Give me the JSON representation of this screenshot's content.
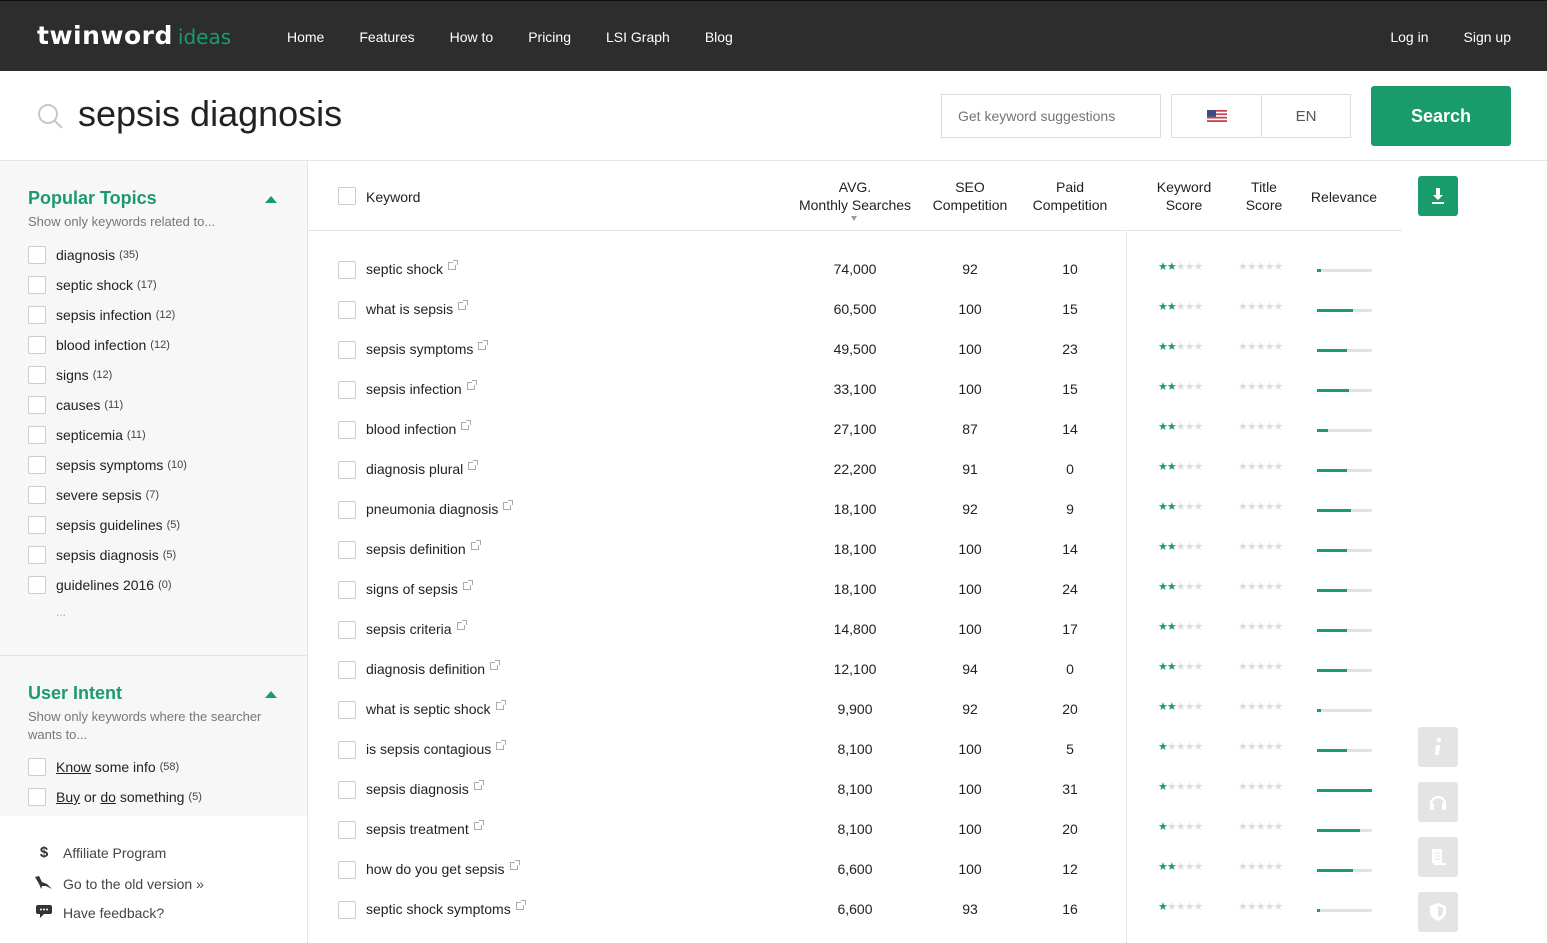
{
  "brand": {
    "logo_text": "twinword",
    "logo_suffix": "ideas"
  },
  "nav": {
    "items": [
      "Home",
      "Features",
      "How to",
      "Pricing",
      "LSI Graph",
      "Blog"
    ],
    "login": "Log in",
    "signup": "Sign up"
  },
  "search": {
    "query": "sepsis diagnosis",
    "suggest_placeholder": "Get keyword suggestions",
    "language": "EN",
    "button": "Search"
  },
  "popular_topics": {
    "title": "Popular Topics",
    "subtitle": "Show only keywords related to...",
    "items": [
      {
        "label": "diagnosis",
        "count": "(35)"
      },
      {
        "label": "septic shock",
        "count": "(17)"
      },
      {
        "label": "sepsis infection",
        "count": "(12)"
      },
      {
        "label": "blood infection",
        "count": "(12)"
      },
      {
        "label": "signs",
        "count": "(12)"
      },
      {
        "label": "causes",
        "count": "(11)"
      },
      {
        "label": "septicemia",
        "count": "(11)"
      },
      {
        "label": "sepsis symptoms",
        "count": "(10)"
      },
      {
        "label": "severe sepsis",
        "count": "(7)"
      },
      {
        "label": "sepsis guidelines",
        "count": "(5)"
      },
      {
        "label": "sepsis diagnosis",
        "count": "(5)"
      },
      {
        "label": "guidelines 2016",
        "count": "(0)"
      }
    ],
    "more": "..."
  },
  "user_intent": {
    "title": "User Intent",
    "subtitle": "Show only keywords where the searcher wants to...",
    "know_word": "Know",
    "know_rest": "some info",
    "know_count": "(58)",
    "buy_word": "Buy",
    "or_word": "or",
    "do_word": "do",
    "buy_rest": "something",
    "buy_count": "(5)"
  },
  "footer_links": {
    "affiliate": "Affiliate Program",
    "old_version": "Go to the old version »",
    "feedback": "Have feedback?"
  },
  "table": {
    "headers": {
      "keyword": "Keyword",
      "avg_1": "AVG.",
      "avg_2": "Monthly Searches",
      "seo_1": "SEO",
      "seo_2": "Competition",
      "paid_1": "Paid",
      "paid_2": "Competition",
      "kscore_1": "Keyword",
      "kscore_2": "Score",
      "tscore_1": "Title",
      "tscore_2": "Score",
      "relevance": "Relevance"
    },
    "rows": [
      {
        "keyword": "septic shock",
        "avg": "74,000",
        "seo": "92",
        "paid": "10",
        "kw_stars": 2,
        "title_stars": 0,
        "relevance": 0.08
      },
      {
        "keyword": "what is sepsis",
        "avg": "60,500",
        "seo": "100",
        "paid": "15",
        "kw_stars": 2,
        "title_stars": 0,
        "relevance": 0.65
      },
      {
        "keyword": "sepsis symptoms",
        "avg": "49,500",
        "seo": "100",
        "paid": "23",
        "kw_stars": 2,
        "title_stars": 0,
        "relevance": 0.55
      },
      {
        "keyword": "sepsis infection",
        "avg": "33,100",
        "seo": "100",
        "paid": "15",
        "kw_stars": 2,
        "title_stars": 0,
        "relevance": 0.58
      },
      {
        "keyword": "blood infection",
        "avg": "27,100",
        "seo": "87",
        "paid": "14",
        "kw_stars": 2,
        "title_stars": 0,
        "relevance": 0.2
      },
      {
        "keyword": "diagnosis plural",
        "avg": "22,200",
        "seo": "91",
        "paid": "0",
        "kw_stars": 2,
        "title_stars": 0,
        "relevance": 0.55
      },
      {
        "keyword": "pneumonia diagnosis",
        "avg": "18,100",
        "seo": "92",
        "paid": "9",
        "kw_stars": 2,
        "title_stars": 0,
        "relevance": 0.62
      },
      {
        "keyword": "sepsis definition",
        "avg": "18,100",
        "seo": "100",
        "paid": "14",
        "kw_stars": 2,
        "title_stars": 0,
        "relevance": 0.55
      },
      {
        "keyword": "signs of sepsis",
        "avg": "18,100",
        "seo": "100",
        "paid": "24",
        "kw_stars": 2,
        "title_stars": 0,
        "relevance": 0.55
      },
      {
        "keyword": "sepsis criteria",
        "avg": "14,800",
        "seo": "100",
        "paid": "17",
        "kw_stars": 2,
        "title_stars": 0,
        "relevance": 0.55
      },
      {
        "keyword": "diagnosis definition",
        "avg": "12,100",
        "seo": "94",
        "paid": "0",
        "kw_stars": 2,
        "title_stars": 0,
        "relevance": 0.55
      },
      {
        "keyword": "what is septic shock",
        "avg": "9,900",
        "seo": "92",
        "paid": "20",
        "kw_stars": 2,
        "title_stars": 0,
        "relevance": 0.07
      },
      {
        "keyword": "is sepsis contagious",
        "avg": "8,100",
        "seo": "100",
        "paid": "5",
        "kw_stars": 1,
        "title_stars": 0,
        "relevance": 0.55
      },
      {
        "keyword": "sepsis diagnosis",
        "avg": "8,100",
        "seo": "100",
        "paid": "31",
        "kw_stars": 1,
        "title_stars": 0,
        "relevance": 1.0
      },
      {
        "keyword": "sepsis treatment",
        "avg": "8,100",
        "seo": "100",
        "paid": "20",
        "kw_stars": 1,
        "title_stars": 0,
        "relevance": 0.78
      },
      {
        "keyword": "how do you get sepsis",
        "avg": "6,600",
        "seo": "100",
        "paid": "12",
        "kw_stars": 2,
        "title_stars": 0,
        "relevance": 0.65
      },
      {
        "keyword": "septic shock symptoms",
        "avg": "6,600",
        "seo": "93",
        "paid": "16",
        "kw_stars": 1,
        "title_stars": 0,
        "relevance": 0.05
      }
    ]
  },
  "colors": {
    "brand_green": "#1a9b6c",
    "nav_bg": "#2d2d2d"
  },
  "icons": [
    "search-icon",
    "us-flag-icon",
    "download-icon",
    "info-icon",
    "headset-icon",
    "document-icon",
    "shield-icon",
    "dollar-icon",
    "dinosaur-icon",
    "chat-icon",
    "caret-up-icon",
    "external-link-icon",
    "star-icon"
  ]
}
